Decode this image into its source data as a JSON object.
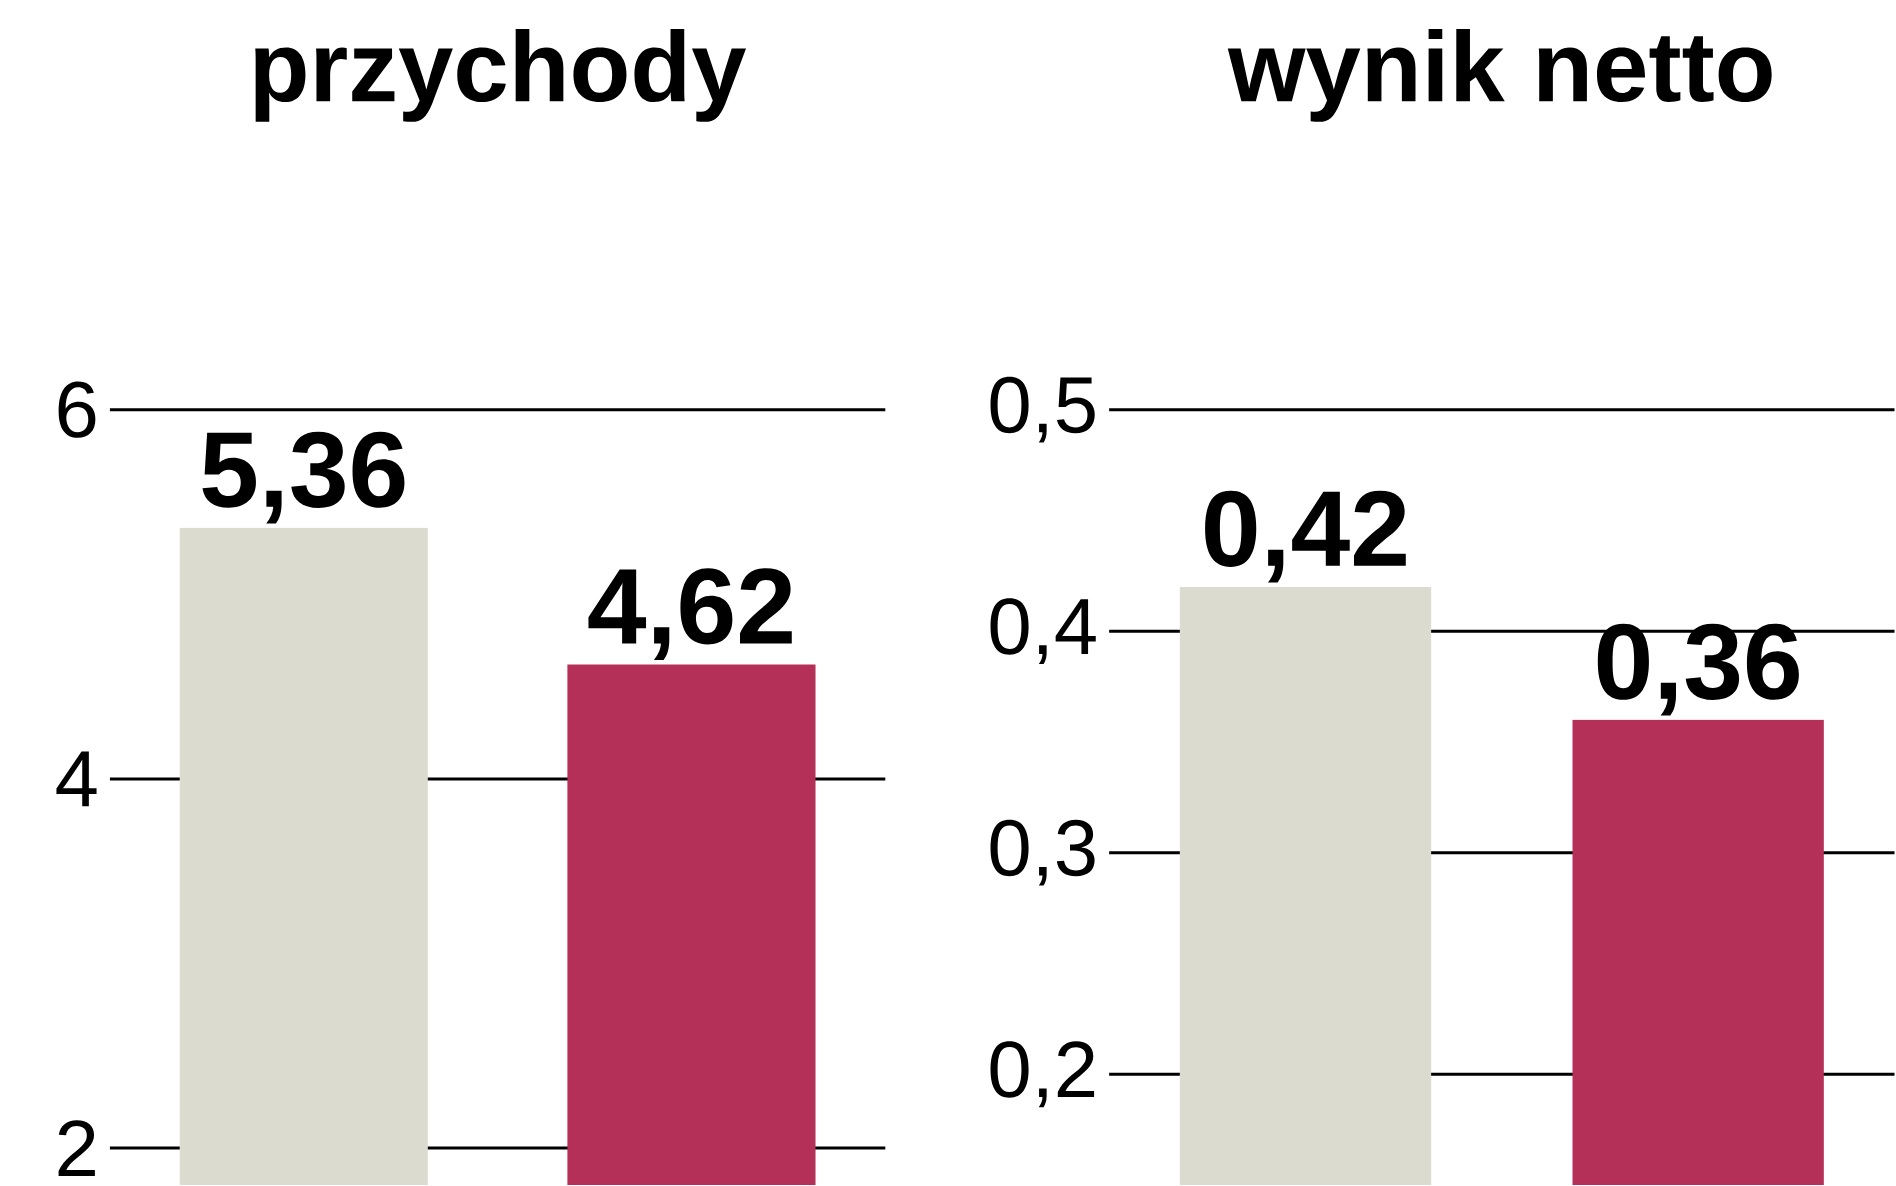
{
  "chart_data": [
    {
      "type": "bar",
      "title": "przychody",
      "categories": [
        null,
        null
      ],
      "values": [
        5.36,
        4.62
      ],
      "colors": [
        "#dcdbd0",
        "#b53058"
      ],
      "value_labels": [
        "5,36",
        "4,62"
      ],
      "ylim": [
        1.8,
        6
      ],
      "yticks": [
        2,
        4,
        6
      ],
      "grid": "y"
    },
    {
      "type": "bar",
      "title": "wynik netto",
      "categories": [
        null,
        null
      ],
      "values": [
        0.42,
        0.36
      ],
      "colors": [
        "#dcdbd0",
        "#b53058"
      ],
      "value_labels": [
        "0,42",
        "0,36"
      ],
      "ylim": [
        0.15,
        0.5
      ],
      "yticks": [
        {
          "value": 0.2,
          "label": "0,2"
        },
        {
          "value": 0.3,
          "label": "0,3"
        },
        {
          "value": 0.4,
          "label": "0,4"
        },
        {
          "value": 0.5,
          "label": "0,5"
        }
      ],
      "grid": "y"
    }
  ]
}
